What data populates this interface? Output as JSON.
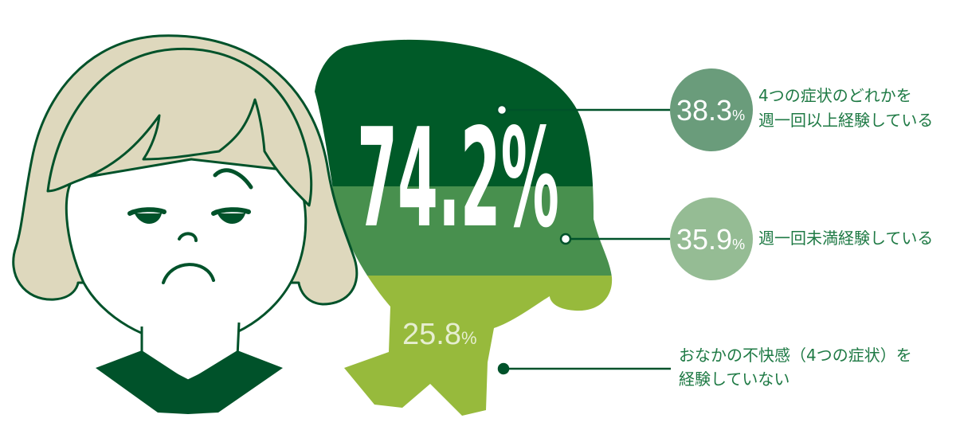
{
  "chart_data": {
    "type": "pie",
    "total_label": "74.2%",
    "total_value": 74.2,
    "segments": [
      {
        "value_text": "38.3",
        "value": 38.3,
        "unit": "%",
        "label_lines": [
          "4つの症状のどれかを",
          "週一回以上経験している"
        ],
        "color": "#005a28"
      },
      {
        "value_text": "35.9",
        "value": 35.9,
        "unit": "%",
        "label_lines": [
          "週一回未満経験している"
        ],
        "color": "#48904e"
      },
      {
        "value_text": "25.8",
        "value": 25.8,
        "unit": "%",
        "label_lines": [
          "おなかの不快感（4つの症状）を",
          "経験していない"
        ],
        "color": "#97ba3c"
      }
    ]
  },
  "colors": {
    "hair_front": "#ded8bd",
    "outline": "#00522a",
    "bubble_1": "#6a9c7b",
    "bubble_2": "#95bc94",
    "label_text": "#1f7a45",
    "pct_text_on_light": "#e6eed0"
  }
}
